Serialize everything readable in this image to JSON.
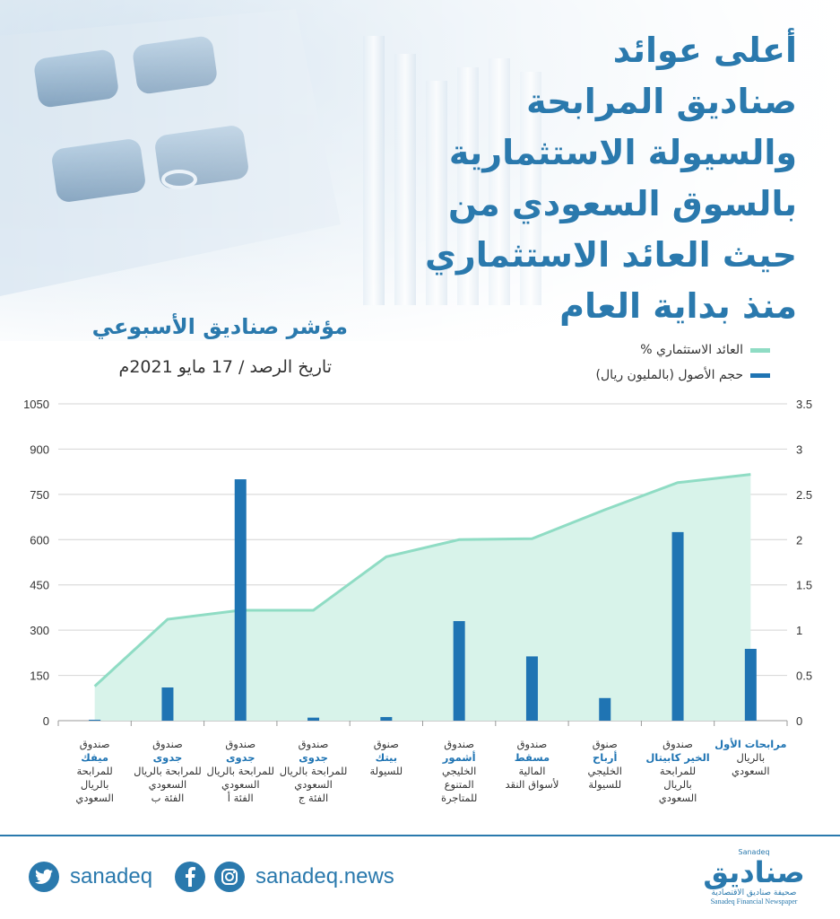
{
  "header": {
    "title_lines": [
      "أعلى عوائد",
      "صناديق المرابحة",
      "والسيولة الاستثمارية",
      "بالسوق السعودي من",
      "حيث العائد الاستثماري",
      "منذ بداية العام"
    ],
    "subtitle": "مؤشر صناديق الأسبوعي",
    "date": "تاريخ الرصد / 17 مايو 2021م"
  },
  "colors": {
    "accent": "#2a79ad",
    "bar": "#1f74b3",
    "area_line": "#8fdcc4",
    "area_fill": "#d8f3ea"
  },
  "chart_data": {
    "type": "bar",
    "title": "مؤشر صناديق الأسبوعي",
    "legend": [
      "العائد الاستثماري %",
      "حجم الأصول (بالمليون ريال)"
    ],
    "legend_position": "top-right",
    "grid": true,
    "y_left": {
      "ticks": [
        "0",
        "150",
        "300",
        "450",
        "600",
        "750",
        "900",
        "1050"
      ],
      "lim": [
        0,
        1050
      ]
    },
    "y_right": {
      "ticks": [
        "0",
        "0.5",
        "1",
        "1.5",
        "2",
        "2.5",
        "3",
        "3.5"
      ],
      "lim": [
        0,
        3.5
      ]
    },
    "categories": [
      {
        "line1": "صندوق",
        "highlight": "ميفك",
        "rest": [
          "للمرابحة",
          "بالريال",
          "السعودي"
        ]
      },
      {
        "line1": "صندوق",
        "highlight": "جدوى",
        "rest": [
          "للمرابحة بالريال",
          "السعودي",
          "الفئة ب"
        ]
      },
      {
        "line1": "صندوق",
        "highlight": "جدوى",
        "rest": [
          "للمرابحة بالريال",
          "السعودي",
          "الفئة أ"
        ]
      },
      {
        "line1": "صندوق",
        "highlight": "جدوى",
        "rest": [
          "للمرابحة بالريال",
          "السعودي",
          "الفئة ج"
        ]
      },
      {
        "line1": "صنوق",
        "highlight": "بيتك",
        "rest": [
          "للسيولة"
        ]
      },
      {
        "line1": "صندوق",
        "highlight": "أشمور",
        "rest": [
          "الخليجي",
          "المتنوع",
          "للمتاجرة"
        ]
      },
      {
        "line1": "صندوق",
        "highlight": "مسقط",
        "rest": [
          "المالية",
          "لأسواق النقد"
        ]
      },
      {
        "line1": "صنوق",
        "highlight": "أرباح",
        "rest": [
          "الخليجي",
          "للسيولة"
        ]
      },
      {
        "line1": "صندوق",
        "highlight": "الخير كابيتال",
        "rest": [
          "للمرابحة",
          "بالريال",
          "السعودي"
        ]
      },
      {
        "line1": "",
        "highlight": "مرابحات الأول",
        "rest": [
          "بالريال",
          "السعودي"
        ]
      }
    ],
    "series": [
      {
        "name": "حجم الأصول (بالمليون ريال)",
        "type": "bar",
        "axis": "left",
        "values": [
          3,
          110,
          800,
          10,
          12,
          330,
          213,
          75,
          625,
          238
        ]
      },
      {
        "name": "العائد الاستثماري %",
        "type": "area",
        "axis": "right",
        "values": [
          0.38,
          1.12,
          1.22,
          1.22,
          1.81,
          2.0,
          2.01,
          2.33,
          2.63,
          2.72
        ]
      }
    ]
  },
  "footer": {
    "twitter_handle": "sanadeq",
    "website": "sanadeq.news",
    "logo_top": "Sanadeq",
    "logo_ar": "صناديق",
    "logo_tagline": "صحيفة صناديق الاقتصادية",
    "logo_en": "Sanadeq Financial Newspaper"
  }
}
